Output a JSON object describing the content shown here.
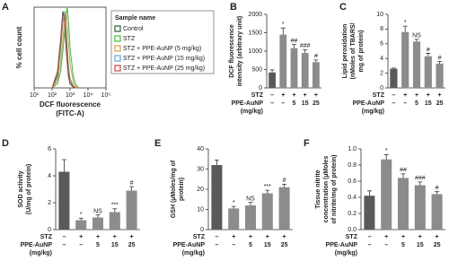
{
  "chart_data": [
    {
      "type": "line",
      "panel": "A",
      "ylabel": "% cell count",
      "xlabel": [
        "DCF fluorescence",
        "(FITC-A)"
      ],
      "xscale": "log",
      "xlim": [
        10,
        100000
      ],
      "xticks": [
        {
          "value": 10,
          "label": "10¹"
        },
        {
          "value": 100,
          "label": "10²"
        },
        {
          "value": 1000,
          "label": "10³"
        },
        {
          "value": 10000,
          "label": "10⁴"
        },
        {
          "value": 100000,
          "label": "10⁵"
        }
      ],
      "ylim": [
        0,
        100
      ],
      "legend_title": "Sample name",
      "x": [
        100,
        200,
        300,
        400,
        500,
        600,
        700,
        800,
        1000,
        1500,
        2000,
        3000
      ],
      "series": [
        {
          "name": "Control",
          "color": "#2f5f2f",
          "values": [
            0,
            20,
            60,
            95,
            80,
            50,
            30,
            15,
            5,
            1,
            0,
            0
          ]
        },
        {
          "name": "STZ",
          "color": "#33c633",
          "values": [
            0,
            5,
            20,
            45,
            70,
            90,
            100,
            85,
            50,
            15,
            5,
            0
          ]
        },
        {
          "name": "STZ + PPE-AuNP (5 mg/kg)",
          "color": "#e0a040",
          "values": [
            0,
            8,
            30,
            60,
            85,
            95,
            80,
            60,
            30,
            8,
            2,
            0
          ]
        },
        {
          "name": "STZ + PPE-AuNP (15 mg/kg)",
          "color": "#5aa8dc",
          "values": [
            0,
            12,
            45,
            80,
            95,
            75,
            50,
            30,
            12,
            3,
            0,
            0
          ]
        },
        {
          "name": "STZ + PPE-AuNP (25 mg/kg)",
          "color": "#d84040",
          "values": [
            0,
            15,
            55,
            90,
            90,
            65,
            40,
            20,
            8,
            2,
            0,
            0
          ]
        }
      ]
    },
    {
      "type": "bar",
      "panel": "B",
      "ylabel": [
        "DCF fluorescence",
        "intensity (arbitrary unit)"
      ],
      "ylim": [
        0,
        2000
      ],
      "yticks": [
        0,
        500,
        1000,
        1500,
        2000
      ],
      "values": [
        420,
        1450,
        1080,
        950,
        700
      ],
      "errors": [
        70,
        180,
        100,
        90,
        60
      ],
      "annotations": [
        null,
        "*",
        "##",
        "###",
        "#"
      ],
      "colors": [
        "#5a5a5a",
        "#8c8c8c",
        "#8c8c8c",
        "#8c8c8c",
        "#8c8c8c"
      ],
      "treatments": [
        {
          "label": [
            "STZ"
          ],
          "values": [
            "–",
            "+",
            "+",
            "+",
            "+"
          ]
        },
        {
          "label": [
            "PPE-AuNP",
            "(mg/kg)"
          ],
          "values": [
            "–",
            "–",
            "5",
            "15",
            "25"
          ]
        }
      ]
    },
    {
      "type": "bar",
      "panel": "C",
      "ylabel": [
        "Lipid peroxidation",
        "(nMoles of TBARS/",
        "mg of protein)"
      ],
      "ylim": [
        0,
        10
      ],
      "yticks": [
        0,
        2,
        4,
        6,
        8,
        10
      ],
      "values": [
        2.6,
        7.6,
        6.3,
        4.3,
        3.3
      ],
      "errors": [
        0.1,
        0.8,
        0.3,
        0.4,
        0.3
      ],
      "annotations": [
        null,
        "*",
        "NS",
        "#",
        "#"
      ],
      "colors": [
        "#5a5a5a",
        "#8c8c8c",
        "#8c8c8c",
        "#8c8c8c",
        "#8c8c8c"
      ],
      "treatments": [
        {
          "label": [
            "STZ"
          ],
          "values": [
            "–",
            "+",
            "+",
            "+",
            "+"
          ]
        },
        {
          "label": [
            "PPE-AuNP",
            "(mg/kg)"
          ],
          "values": [
            "–",
            "–",
            "5",
            "15",
            "25"
          ]
        }
      ]
    },
    {
      "type": "bar",
      "panel": "D",
      "ylabel": [
        "SOD activity",
        "(U/mg of protein)"
      ],
      "ylim": [
        0,
        6
      ],
      "yticks": [
        0,
        2,
        4,
        6
      ],
      "values": [
        4.3,
        0.7,
        0.9,
        1.3,
        2.9
      ],
      "errors": [
        0.9,
        0.15,
        0.2,
        0.25,
        0.3
      ],
      "annotations": [
        null,
        "*",
        "NS",
        "***",
        "#"
      ],
      "colors": [
        "#5a5a5a",
        "#8c8c8c",
        "#8c8c8c",
        "#8c8c8c",
        "#8c8c8c"
      ],
      "treatments": [
        {
          "label": [
            "STZ"
          ],
          "values": [
            "–",
            "+",
            "+",
            "+",
            "+"
          ]
        },
        {
          "label": [
            "PPE-AuNP",
            "(mg/kg)"
          ],
          "values": [
            "–",
            "–",
            "5",
            "15",
            "25"
          ]
        }
      ]
    },
    {
      "type": "bar",
      "panel": "E",
      "ylabel": [
        "GSH (µMoles/mg of",
        "protein)"
      ],
      "ylim": [
        0,
        40
      ],
      "yticks": [
        0,
        10,
        20,
        30,
        40
      ],
      "values": [
        32,
        10.5,
        12,
        18,
        21
      ],
      "errors": [
        2.5,
        1,
        1.5,
        1.5,
        1.5
      ],
      "annotations": [
        null,
        "*",
        "NS",
        "***",
        "#"
      ],
      "colors": [
        "#5a5a5a",
        "#8c8c8c",
        "#8c8c8c",
        "#8c8c8c",
        "#8c8c8c"
      ],
      "treatments": [
        {
          "label": [
            "STZ"
          ],
          "values": [
            "–",
            "+",
            "+",
            "+",
            "+"
          ]
        },
        {
          "label": [
            "PPE-AuNP",
            "(mg/kg)"
          ],
          "values": [
            "–",
            "–",
            "5",
            "15",
            "25"
          ]
        }
      ]
    },
    {
      "type": "bar",
      "panel": "F",
      "ylabel": [
        "Tissue nitrite",
        "concentration (µMoles",
        "of nitrite/mg of protein)"
      ],
      "ylim": [
        0,
        1
      ],
      "yticks": [
        {
          "value": 0,
          "label": "0.0"
        },
        0.2,
        0.4,
        0.6,
        0.8,
        {
          "value": 1,
          "label": "1.0"
        }
      ],
      "values": [
        0.42,
        0.87,
        0.64,
        0.55,
        0.44
      ],
      "errors": [
        0.06,
        0.06,
        0.05,
        0.04,
        0.03
      ],
      "annotations": [
        null,
        "*",
        "##",
        "###",
        "#"
      ],
      "colors": [
        "#5a5a5a",
        "#8c8c8c",
        "#8c8c8c",
        "#8c8c8c",
        "#8c8c8c"
      ],
      "treatments": [
        {
          "label": [
            "STZ"
          ],
          "values": [
            "–",
            "+",
            "+",
            "+",
            "+"
          ]
        },
        {
          "label": [
            "PPE-AuNP",
            "(mg/kg)"
          ],
          "values": [
            "–",
            "–",
            "5",
            "15",
            "25"
          ]
        }
      ]
    }
  ]
}
